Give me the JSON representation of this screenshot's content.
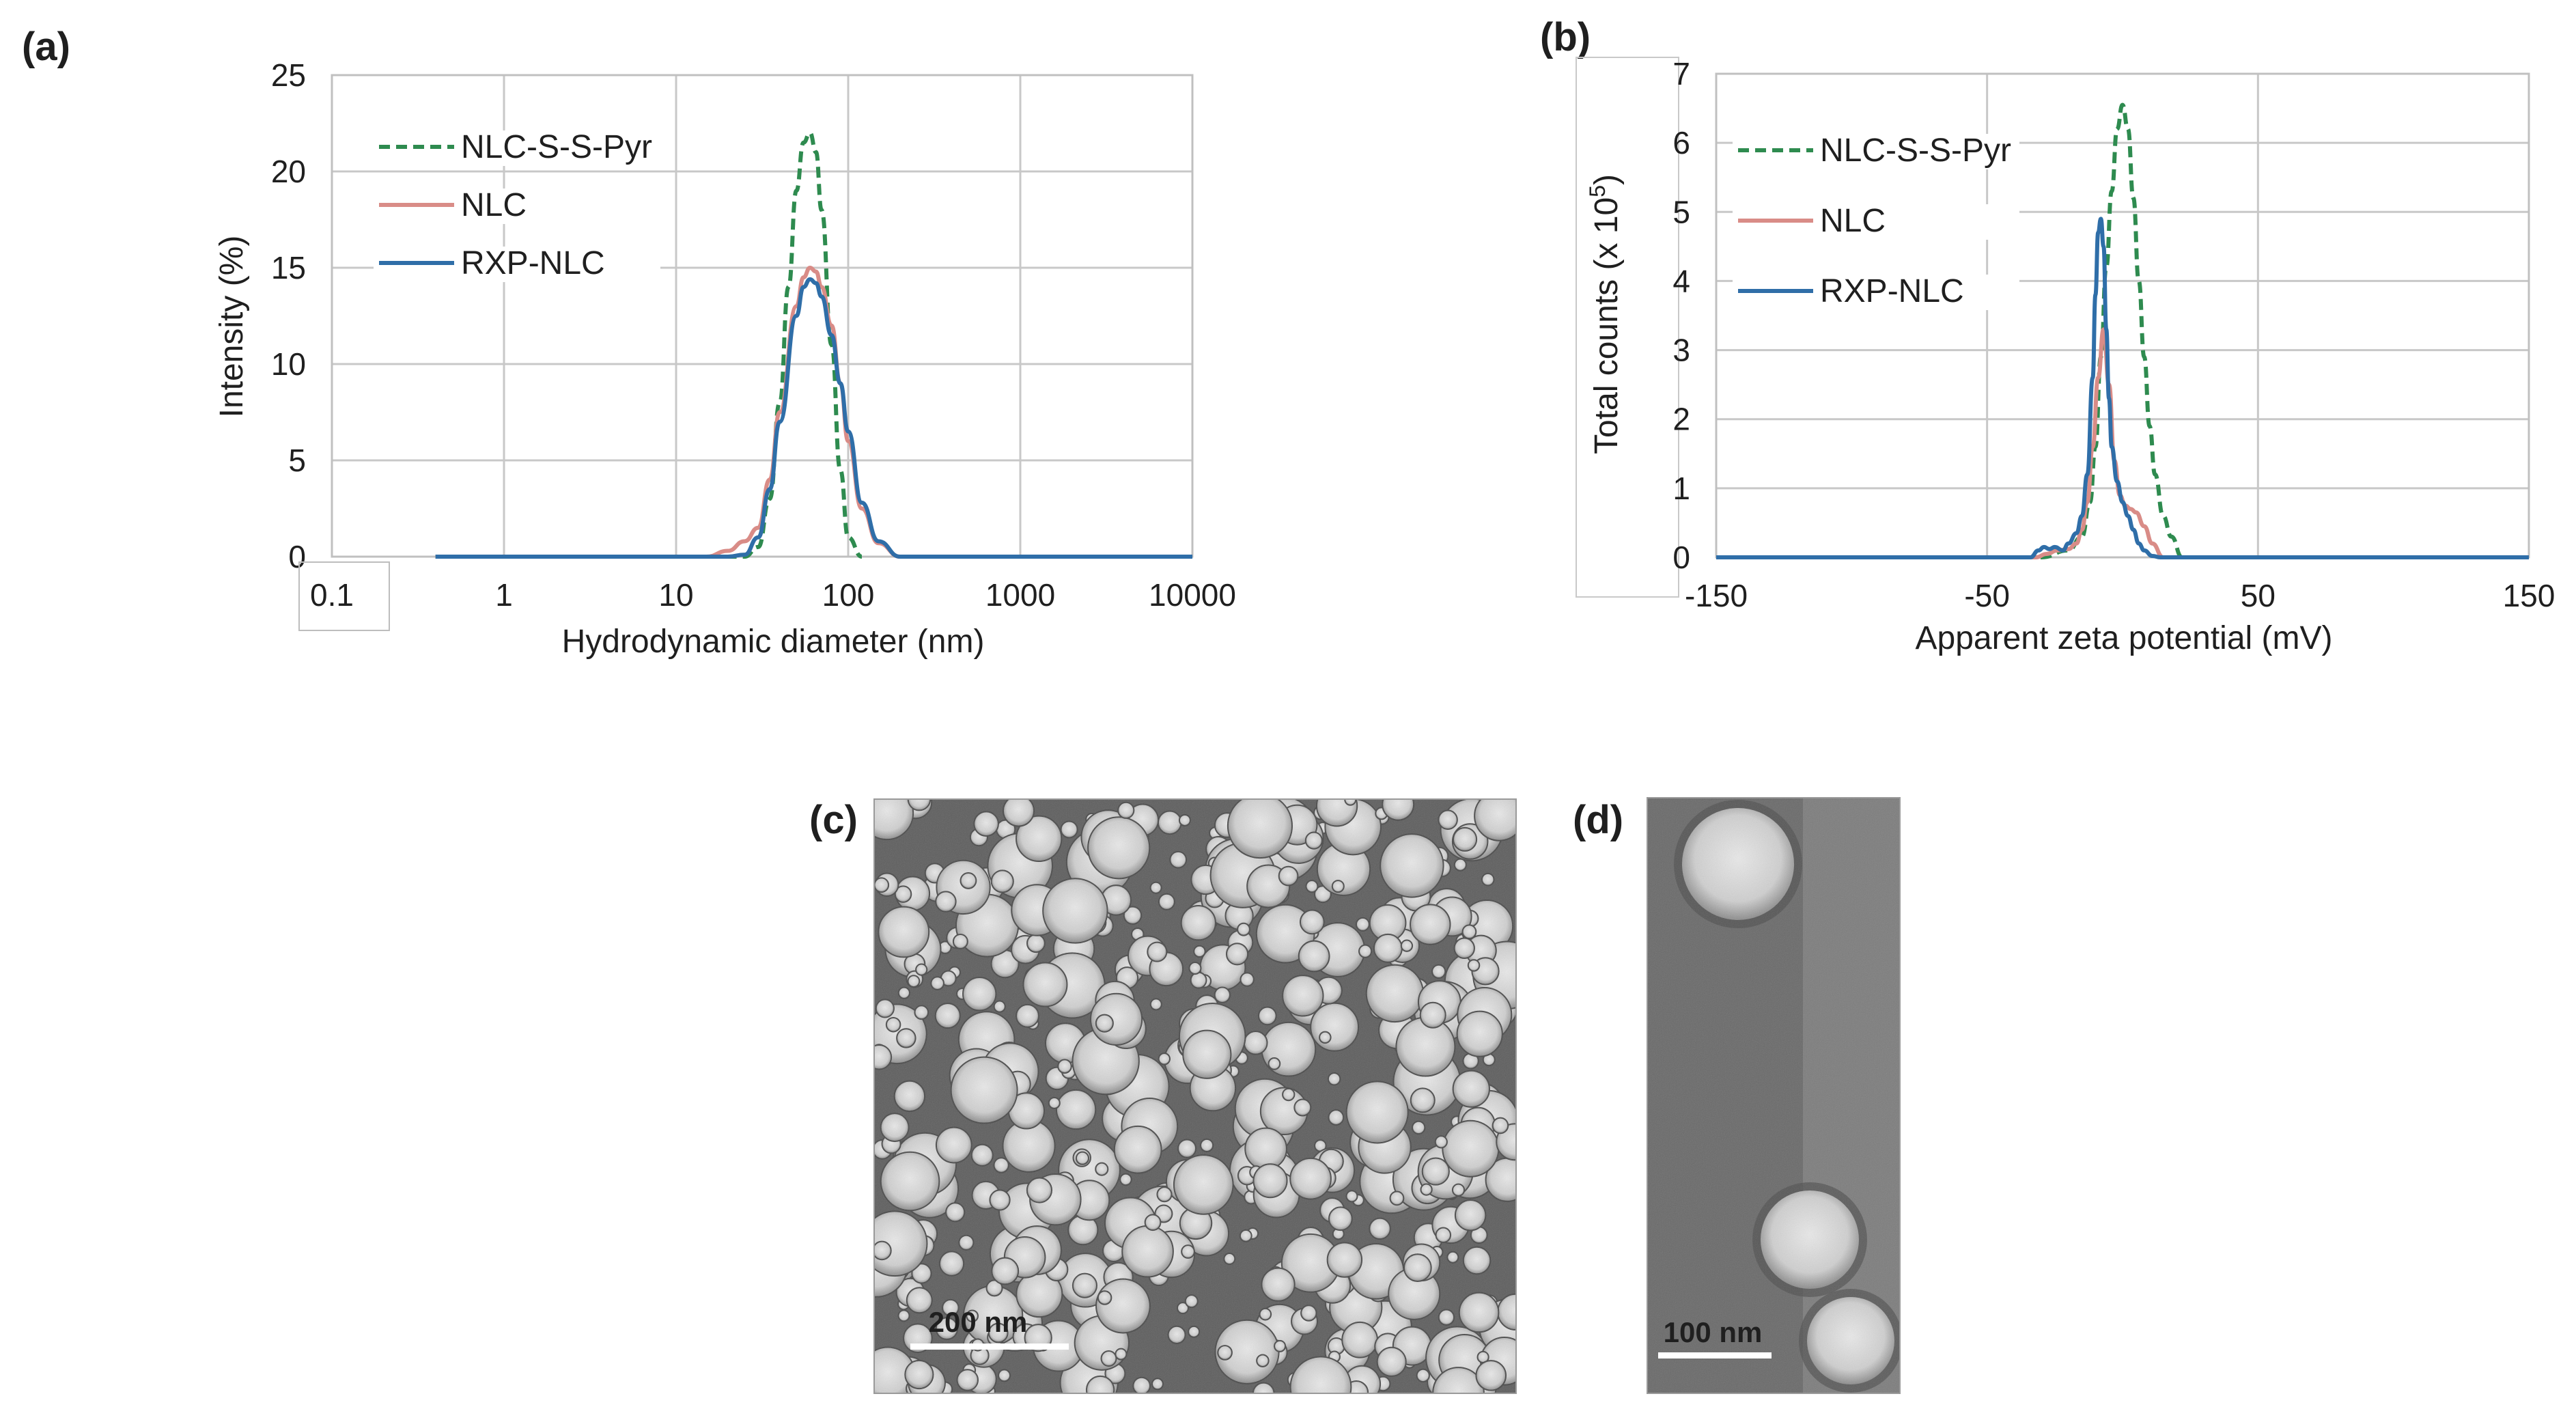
{
  "panel_labels": [
    "(a)",
    "(b)",
    "(c)",
    "(d)"
  ],
  "chart_data": [
    {
      "type": "line",
      "panel": "(a)",
      "xlabel": "Hydrodynamic diameter (nm)",
      "ylabel": "Intensity (%)",
      "xscale": "log",
      "xlim": [
        0.1,
        10000
      ],
      "ylim": [
        0,
        25
      ],
      "xticks": [
        "0.1",
        "1",
        "10",
        "100",
        "1000",
        "10000"
      ],
      "yticks": [
        "0",
        "5",
        "10",
        "15",
        "20",
        "25"
      ],
      "grid": true,
      "legend_position": "top-left",
      "series": [
        {
          "name": "NLC-S-S-Pyr",
          "color": "#2e8b4f",
          "dash": "dashed",
          "x": [
            0.4,
            25,
            30,
            35,
            40,
            45,
            50,
            55,
            60,
            65,
            70,
            80,
            90,
            100,
            120
          ],
          "y": [
            0,
            0,
            0.5,
            3,
            8,
            14,
            19,
            21.5,
            22,
            21,
            18,
            11,
            4.5,
            1,
            0
          ]
        },
        {
          "name": "NLC",
          "color": "#d98c87",
          "dash": "solid",
          "x": [
            0.4,
            15,
            20,
            25,
            30,
            35,
            40,
            50,
            55,
            60,
            65,
            70,
            80,
            90,
            100,
            120,
            150,
            200
          ],
          "y": [
            0,
            0,
            0.3,
            0.8,
            1.5,
            4,
            7.5,
            13,
            14.5,
            15,
            14.8,
            14,
            12,
            9,
            6,
            2.5,
            0.7,
            0
          ]
        },
        {
          "name": "RXP-NLC",
          "color": "#2f6ea8",
          "dash": "solid",
          "x": [
            0.4,
            20,
            25,
            30,
            35,
            40,
            50,
            55,
            60,
            65,
            70,
            80,
            90,
            100,
            120,
            150,
            200,
            10000
          ],
          "y": [
            0,
            0,
            0.1,
            1,
            3.5,
            7,
            12.5,
            14,
            14.4,
            14.2,
            13.5,
            11.5,
            9,
            6.5,
            2.8,
            0.8,
            0,
            0
          ]
        }
      ]
    },
    {
      "type": "line",
      "panel": "(b)",
      "xlabel": "Apparent zeta potential (mV)",
      "ylabel_prefix": "Total counts (x 10",
      "ylabel_sup": "5",
      "ylabel_suffix": ")",
      "xlim": [
        -150,
        150
      ],
      "ylim": [
        0,
        7
      ],
      "xticks": [
        "-150",
        "-50",
        "50",
        "150"
      ],
      "yticks": [
        "0",
        "1",
        "2",
        "3",
        "4",
        "5",
        "6",
        "7"
      ],
      "grid": true,
      "legend_position": "top-left",
      "series": [
        {
          "name": "NLC-S-S-Pyr",
          "color": "#2e8b4f",
          "dash": "dashed",
          "x": [
            -150,
            -30,
            -20,
            -15,
            -12,
            -10,
            -8,
            -6,
            -4,
            -2,
            0,
            2,
            4,
            6,
            8,
            10,
            12,
            15,
            18,
            22,
            150
          ],
          "y": [
            0,
            0,
            0.1,
            0.3,
            0.8,
            1.6,
            2.9,
            4.2,
            5.3,
            6.2,
            6.55,
            6.2,
            5.2,
            4.0,
            2.9,
            1.9,
            1.2,
            0.6,
            0.3,
            0,
            0
          ]
        },
        {
          "name": "NLC",
          "color": "#d98c87",
          "dash": "solid",
          "x": [
            -150,
            -32,
            -28,
            -24,
            -20,
            -17,
            -15,
            -13,
            -11,
            -9,
            -7,
            -5,
            -3,
            -1,
            1,
            3,
            5,
            8,
            11,
            15,
            150
          ],
          "y": [
            0,
            0,
            0.05,
            0.1,
            0.12,
            0.2,
            0.4,
            0.8,
            1.6,
            2.6,
            3.3,
            2.5,
            1.4,
            0.9,
            0.75,
            0.7,
            0.65,
            0.45,
            0.2,
            0,
            0
          ]
        },
        {
          "name": "RXP-NLC",
          "color": "#2f6ea8",
          "dash": "solid",
          "x": [
            -150,
            -34,
            -31,
            -29,
            -27,
            -25,
            -22,
            -20,
            -17,
            -15,
            -13,
            -11,
            -10,
            -9,
            -8,
            -7,
            -6,
            -5,
            -4,
            -2,
            0,
            2,
            4,
            6,
            8,
            11,
            14,
            150
          ],
          "y": [
            0,
            0,
            0.1,
            0.15,
            0.12,
            0.15,
            0.1,
            0.2,
            0.35,
            0.6,
            1.2,
            2.6,
            3.8,
            4.7,
            4.9,
            4.5,
            3.3,
            2.3,
            1.6,
            1.1,
            0.8,
            0.6,
            0.4,
            0.2,
            0.1,
            0.02,
            0,
            0
          ]
        }
      ]
    }
  ],
  "images": [
    {
      "panel": "(c)",
      "scale_bar": "200 nm"
    },
    {
      "panel": "(d)",
      "scale_bar": "100 nm"
    }
  ]
}
